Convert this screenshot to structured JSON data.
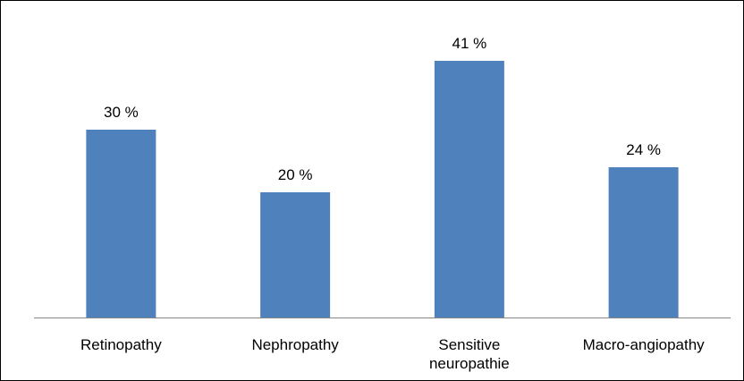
{
  "chart_data": {
    "type": "bar",
    "categories": [
      [
        "Retinopathy"
      ],
      [
        "Nephropathy"
      ],
      [
        "Sensitive",
        "neuropathie"
      ],
      [
        "Macro-angiopathy"
      ]
    ],
    "values": [
      30,
      20,
      41,
      24
    ],
    "data_labels": [
      "30 %",
      "20 %",
      "41 %",
      "24 %"
    ],
    "unit": "%",
    "title": "",
    "xlabel": "",
    "ylabel": "",
    "ylim": [
      0,
      41
    ],
    "grid": false,
    "legend": "none",
    "bar_color": "#4f81bd",
    "axis_color": "#868686"
  }
}
